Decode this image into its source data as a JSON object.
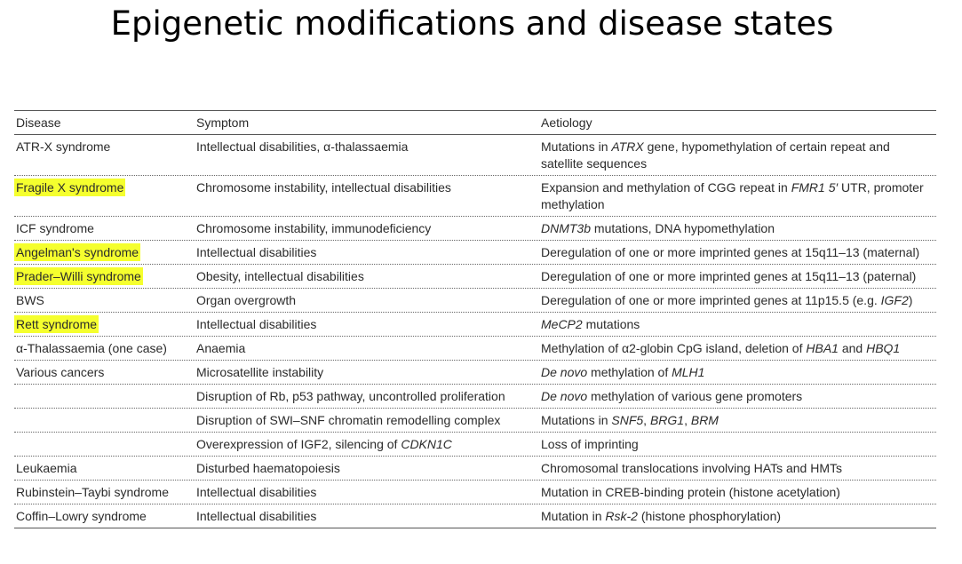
{
  "title": "Epigenetic modifications and disease states",
  "columns": [
    "Disease",
    "Symptom",
    "Aetiology"
  ],
  "highlight_color": "#f5ff2e",
  "rows": [
    {
      "disease": "ATR-X syndrome",
      "highlight": false,
      "symptom": [
        {
          "t": "Intellectual disabilities, α-thalassaemia"
        }
      ],
      "aetiology": [
        {
          "t": "Mutations in "
        },
        {
          "t": "ATRX",
          "i": true
        },
        {
          "t": " gene, hypomethylation of certain repeat and satellite sequences"
        }
      ]
    },
    {
      "disease": "Fragile X syndrome",
      "highlight": true,
      "symptom": [
        {
          "t": "Chromosome instability, intellectual disabilities"
        }
      ],
      "aetiology": [
        {
          "t": "Expansion and methylation of CGG repeat in "
        },
        {
          "t": "FMR1 5′",
          "i": true
        },
        {
          "t": " UTR, promoter methylation"
        }
      ]
    },
    {
      "disease": "ICF syndrome",
      "highlight": false,
      "symptom": [
        {
          "t": "Chromosome instability, immunodeficiency"
        }
      ],
      "aetiology": [
        {
          "t": "DNMT3b",
          "i": true
        },
        {
          "t": " mutations, DNA hypomethylation"
        }
      ]
    },
    {
      "disease": "Angelman's syndrome",
      "highlight": true,
      "symptom": [
        {
          "t": "Intellectual disabilities"
        }
      ],
      "aetiology": [
        {
          "t": "Deregulation of one or more imprinted genes at 15q11–13 (maternal)"
        }
      ]
    },
    {
      "disease": "Prader–Willi syndrome",
      "highlight": true,
      "symptom": [
        {
          "t": "Obesity, intellectual disabilities"
        }
      ],
      "aetiology": [
        {
          "t": "Deregulation of one or more imprinted genes at 15q11–13 (paternal)"
        }
      ]
    },
    {
      "disease": "BWS",
      "highlight": false,
      "symptom": [
        {
          "t": "Organ overgrowth"
        }
      ],
      "aetiology": [
        {
          "t": "Deregulation of one or more imprinted genes at 11p15.5 (e.g. "
        },
        {
          "t": "IGF2",
          "i": true
        },
        {
          "t": ")"
        }
      ]
    },
    {
      "disease": "Rett syndrome",
      "highlight": true,
      "symptom": [
        {
          "t": "Intellectual disabilities"
        }
      ],
      "aetiology": [
        {
          "t": "MeCP2",
          "i": true
        },
        {
          "t": " mutations"
        }
      ]
    },
    {
      "disease": "α-Thalassaemia (one case)",
      "highlight": false,
      "symptom": [
        {
          "t": "Anaemia"
        }
      ],
      "aetiology": [
        {
          "t": "Methylation of α2-globin CpG island, deletion of "
        },
        {
          "t": "HBA1",
          "i": true
        },
        {
          "t": " and "
        },
        {
          "t": "HBQ1",
          "i": true
        }
      ]
    },
    {
      "disease": "Various cancers",
      "highlight": false,
      "symptom": [
        {
          "t": "Microsatellite instability"
        }
      ],
      "aetiology": [
        {
          "t": "De novo",
          "i": true
        },
        {
          "t": " methylation of "
        },
        {
          "t": "MLH1",
          "i": true
        }
      ]
    },
    {
      "disease": "",
      "highlight": false,
      "symptom": [
        {
          "t": "Disruption of Rb, p53 pathway, uncontrolled proliferation"
        }
      ],
      "aetiology": [
        {
          "t": "De novo",
          "i": true
        },
        {
          "t": " methylation of various gene promoters"
        }
      ]
    },
    {
      "disease": "",
      "highlight": false,
      "symptom": [
        {
          "t": "Disruption of SWI–SNF chromatin remodelling complex"
        }
      ],
      "aetiology": [
        {
          "t": "Mutations in "
        },
        {
          "t": "SNF5",
          "i": true
        },
        {
          "t": ", "
        },
        {
          "t": "BRG1",
          "i": true
        },
        {
          "t": ", "
        },
        {
          "t": "BRM",
          "i": true
        }
      ]
    },
    {
      "disease": "",
      "highlight": false,
      "symptom": [
        {
          "t": "Overexpression of IGF2, silencing of "
        },
        {
          "t": "CDKN1C",
          "i": true
        }
      ],
      "aetiology": [
        {
          "t": "Loss of imprinting"
        }
      ]
    },
    {
      "disease": "Leukaemia",
      "highlight": false,
      "symptom": [
        {
          "t": "Disturbed haematopoiesis"
        }
      ],
      "aetiology": [
        {
          "t": "Chromosomal translocations involving HATs and HMTs"
        }
      ]
    },
    {
      "disease": "Rubinstein–Taybi syndrome",
      "highlight": false,
      "symptom": [
        {
          "t": "Intellectual disabilities"
        }
      ],
      "aetiology": [
        {
          "t": "Mutation in CREB-binding protein (histone acetylation)"
        }
      ]
    },
    {
      "disease": "Coffin–Lowry syndrome",
      "highlight": false,
      "symptom": [
        {
          "t": "Intellectual disabilities"
        }
      ],
      "aetiology": [
        {
          "t": "Mutation in "
        },
        {
          "t": "Rsk-2",
          "i": true
        },
        {
          "t": " (histone phosphorylation)"
        }
      ]
    }
  ]
}
